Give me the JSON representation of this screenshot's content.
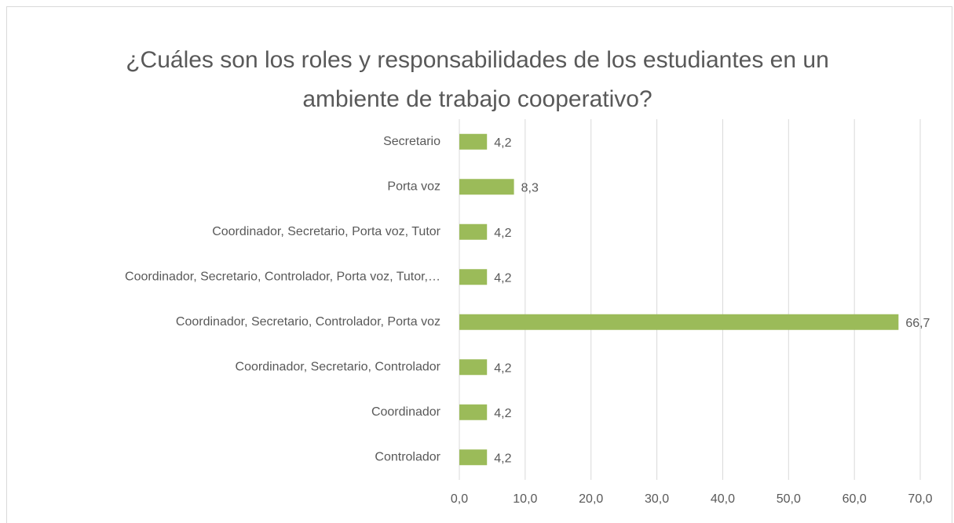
{
  "chart_data": {
    "type": "bar",
    "orientation": "horizontal",
    "title": "¿Cuáles son los roles y responsabilidades de los estudiantes en un ambiente de trabajo cooperativo?",
    "categories": [
      "Secretario",
      "Porta voz",
      "Coordinador, Secretario, Porta voz, Tutor",
      "Coordinador, Secretario, Controlador, Porta voz, Tutor,…",
      "Coordinador, Secretario, Controlador, Porta voz",
      "Coordinador, Secretario, Controlador",
      "Coordinador",
      "Controlador"
    ],
    "values": [
      4.2,
      8.3,
      4.2,
      4.2,
      66.7,
      4.2,
      4.2,
      4.2
    ],
    "value_labels": [
      "4,2",
      "8,3",
      "4,2",
      "4,2",
      "66,7",
      "4,2",
      "4,2",
      "4,2"
    ],
    "color": "#9bbb59",
    "xlim": [
      0,
      70
    ],
    "xticks": [
      {
        "value": 0,
        "label": "0,0"
      },
      {
        "value": 10,
        "label": "10,0"
      },
      {
        "value": 20,
        "label": "20,0"
      },
      {
        "value": 30,
        "label": "30,0"
      },
      {
        "value": 40,
        "label": "40,0"
      },
      {
        "value": 50,
        "label": "50,0"
      },
      {
        "value": 60,
        "label": "60,0"
      },
      {
        "value": 70,
        "label": "70,0"
      }
    ],
    "grid": true
  }
}
